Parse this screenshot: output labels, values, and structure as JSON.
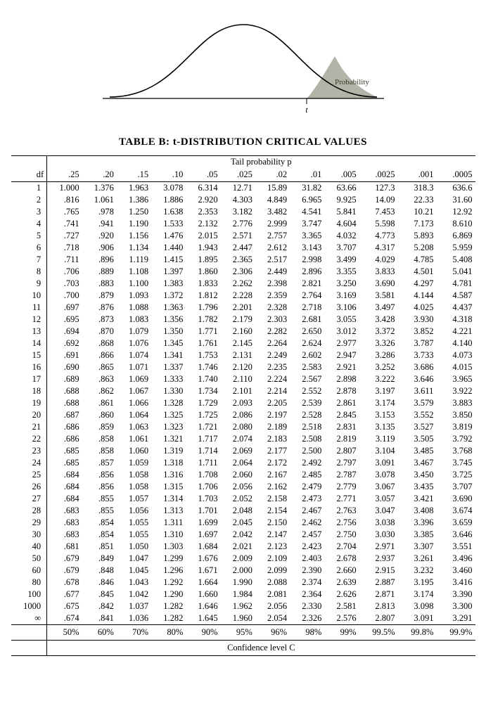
{
  "title": "TABLE B: t-DISTRIBUTION CRITICAL VALUES",
  "tail_label": "Tail probability p",
  "df_label": "df",
  "conf_label": "Confidence level C",
  "inf_symbol": "∞",
  "curve": {
    "stroke": "#000000",
    "fill_shade": "#9a9a8a",
    "prob_label": "Probability",
    "t_label": "t"
  },
  "probs": [
    ".25",
    ".20",
    ".15",
    ".10",
    ".05",
    ".025",
    ".02",
    ".01",
    ".005",
    ".0025",
    ".001",
    ".0005"
  ],
  "conf": [
    "50%",
    "60%",
    "70%",
    "80%",
    "90%",
    "95%",
    "96%",
    "98%",
    "99%",
    "99.5%",
    "99.8%",
    "99.9%"
  ],
  "df_values": [
    "1",
    "2",
    "3",
    "4",
    "5",
    "6",
    "7",
    "8",
    "9",
    "10",
    "11",
    "12",
    "13",
    "14",
    "15",
    "16",
    "17",
    "18",
    "19",
    "20",
    "21",
    "22",
    "23",
    "24",
    "25",
    "26",
    "27",
    "28",
    "29",
    "30",
    "40",
    "50",
    "60",
    "80",
    "100",
    "1000",
    "∞"
  ],
  "rows": [
    [
      "1.000",
      "1.376",
      "1.963",
      "3.078",
      "6.314",
      "12.71",
      "15.89",
      "31.82",
      "63.66",
      "127.3",
      "318.3",
      "636.6"
    ],
    [
      ".816",
      "1.061",
      "1.386",
      "1.886",
      "2.920",
      "4.303",
      "4.849",
      "6.965",
      "9.925",
      "14.09",
      "22.33",
      "31.60"
    ],
    [
      ".765",
      ".978",
      "1.250",
      "1.638",
      "2.353",
      "3.182",
      "3.482",
      "4.541",
      "5.841",
      "7.453",
      "10.21",
      "12.92"
    ],
    [
      ".741",
      ".941",
      "1.190",
      "1.533",
      "2.132",
      "2.776",
      "2.999",
      "3.747",
      "4.604",
      "5.598",
      "7.173",
      "8.610"
    ],
    [
      ".727",
      ".920",
      "1.156",
      "1.476",
      "2.015",
      "2.571",
      "2.757",
      "3.365",
      "4.032",
      "4.773",
      "5.893",
      "6.869"
    ],
    [
      ".718",
      ".906",
      "1.134",
      "1.440",
      "1.943",
      "2.447",
      "2.612",
      "3.143",
      "3.707",
      "4.317",
      "5.208",
      "5.959"
    ],
    [
      ".711",
      ".896",
      "1.119",
      "1.415",
      "1.895",
      "2.365",
      "2.517",
      "2.998",
      "3.499",
      "4.029",
      "4.785",
      "5.408"
    ],
    [
      ".706",
      ".889",
      "1.108",
      "1.397",
      "1.860",
      "2.306",
      "2.449",
      "2.896",
      "3.355",
      "3.833",
      "4.501",
      "5.041"
    ],
    [
      ".703",
      ".883",
      "1.100",
      "1.383",
      "1.833",
      "2.262",
      "2.398",
      "2.821",
      "3.250",
      "3.690",
      "4.297",
      "4.781"
    ],
    [
      ".700",
      ".879",
      "1.093",
      "1.372",
      "1.812",
      "2.228",
      "2.359",
      "2.764",
      "3.169",
      "3.581",
      "4.144",
      "4.587"
    ],
    [
      ".697",
      ".876",
      "1.088",
      "1.363",
      "1.796",
      "2.201",
      "2.328",
      "2.718",
      "3.106",
      "3.497",
      "4.025",
      "4.437"
    ],
    [
      ".695",
      ".873",
      "1.083",
      "1.356",
      "1.782",
      "2.179",
      "2.303",
      "2.681",
      "3.055",
      "3.428",
      "3.930",
      "4.318"
    ],
    [
      ".694",
      ".870",
      "1.079",
      "1.350",
      "1.771",
      "2.160",
      "2.282",
      "2.650",
      "3.012",
      "3.372",
      "3.852",
      "4.221"
    ],
    [
      ".692",
      ".868",
      "1.076",
      "1.345",
      "1.761",
      "2.145",
      "2.264",
      "2.624",
      "2.977",
      "3.326",
      "3.787",
      "4.140"
    ],
    [
      ".691",
      ".866",
      "1.074",
      "1.341",
      "1.753",
      "2.131",
      "2.249",
      "2.602",
      "2.947",
      "3.286",
      "3.733",
      "4.073"
    ],
    [
      ".690",
      ".865",
      "1.071",
      "1.337",
      "1.746",
      "2.120",
      "2.235",
      "2.583",
      "2.921",
      "3.252",
      "3.686",
      "4.015"
    ],
    [
      ".689",
      ".863",
      "1.069",
      "1.333",
      "1.740",
      "2.110",
      "2.224",
      "2.567",
      "2.898",
      "3.222",
      "3.646",
      "3.965"
    ],
    [
      ".688",
      ".862",
      "1.067",
      "1.330",
      "1.734",
      "2.101",
      "2.214",
      "2.552",
      "2.878",
      "3.197",
      "3.611",
      "3.922"
    ],
    [
      ".688",
      ".861",
      "1.066",
      "1.328",
      "1.729",
      "2.093",
      "2.205",
      "2.539",
      "2.861",
      "3.174",
      "3.579",
      "3.883"
    ],
    [
      ".687",
      ".860",
      "1.064",
      "1.325",
      "1.725",
      "2.086",
      "2.197",
      "2.528",
      "2.845",
      "3.153",
      "3.552",
      "3.850"
    ],
    [
      ".686",
      ".859",
      "1.063",
      "1.323",
      "1.721",
      "2.080",
      "2.189",
      "2.518",
      "2.831",
      "3.135",
      "3.527",
      "3.819"
    ],
    [
      ".686",
      ".858",
      "1.061",
      "1.321",
      "1.717",
      "2.074",
      "2.183",
      "2.508",
      "2.819",
      "3.119",
      "3.505",
      "3.792"
    ],
    [
      ".685",
      ".858",
      "1.060",
      "1.319",
      "1.714",
      "2.069",
      "2.177",
      "2.500",
      "2.807",
      "3.104",
      "3.485",
      "3.768"
    ],
    [
      ".685",
      ".857",
      "1.059",
      "1.318",
      "1.711",
      "2.064",
      "2.172",
      "2.492",
      "2.797",
      "3.091",
      "3.467",
      "3.745"
    ],
    [
      ".684",
      ".856",
      "1.058",
      "1.316",
      "1.708",
      "2.060",
      "2.167",
      "2.485",
      "2.787",
      "3.078",
      "3.450",
      "3.725"
    ],
    [
      ".684",
      ".856",
      "1.058",
      "1.315",
      "1.706",
      "2.056",
      "2.162",
      "2.479",
      "2.779",
      "3.067",
      "3.435",
      "3.707"
    ],
    [
      ".684",
      ".855",
      "1.057",
      "1.314",
      "1.703",
      "2.052",
      "2.158",
      "2.473",
      "2.771",
      "3.057",
      "3.421",
      "3.690"
    ],
    [
      ".683",
      ".855",
      "1.056",
      "1.313",
      "1.701",
      "2.048",
      "2.154",
      "2.467",
      "2.763",
      "3.047",
      "3.408",
      "3.674"
    ],
    [
      ".683",
      ".854",
      "1.055",
      "1.311",
      "1.699",
      "2.045",
      "2.150",
      "2.462",
      "2.756",
      "3.038",
      "3.396",
      "3.659"
    ],
    [
      ".683",
      ".854",
      "1.055",
      "1.310",
      "1.697",
      "2.042",
      "2.147",
      "2.457",
      "2.750",
      "3.030",
      "3.385",
      "3.646"
    ],
    [
      ".681",
      ".851",
      "1.050",
      "1.303",
      "1.684",
      "2.021",
      "2.123",
      "2.423",
      "2.704",
      "2.971",
      "3.307",
      "3.551"
    ],
    [
      ".679",
      ".849",
      "1.047",
      "1.299",
      "1.676",
      "2.009",
      "2.109",
      "2.403",
      "2.678",
      "2.937",
      "3.261",
      "3.496"
    ],
    [
      ".679",
      ".848",
      "1.045",
      "1.296",
      "1.671",
      "2.000",
      "2.099",
      "2.390",
      "2.660",
      "2.915",
      "3.232",
      "3.460"
    ],
    [
      ".678",
      ".846",
      "1.043",
      "1.292",
      "1.664",
      "1.990",
      "2.088",
      "2.374",
      "2.639",
      "2.887",
      "3.195",
      "3.416"
    ],
    [
      ".677",
      ".845",
      "1.042",
      "1.290",
      "1.660",
      "1.984",
      "2.081",
      "2.364",
      "2.626",
      "2.871",
      "3.174",
      "3.390"
    ],
    [
      ".675",
      ".842",
      "1.037",
      "1.282",
      "1.646",
      "1.962",
      "2.056",
      "2.330",
      "2.581",
      "2.813",
      "3.098",
      "3.300"
    ],
    [
      ".674",
      ".841",
      "1.036",
      "1.282",
      "1.645",
      "1.960",
      "2.054",
      "2.326",
      "2.576",
      "2.807",
      "3.091",
      "3.291"
    ]
  ]
}
